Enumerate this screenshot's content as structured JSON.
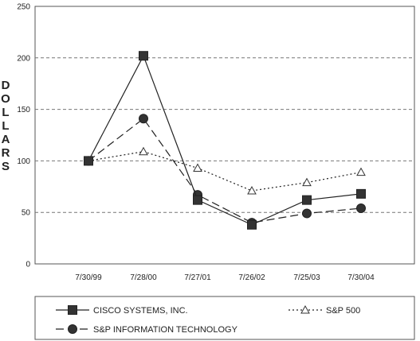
{
  "chart_data": {
    "type": "line",
    "title": "",
    "xlabel": "",
    "ylabel": "DOLLARS",
    "categories": [
      "7/30/99",
      "7/28/00",
      "7/27/01",
      "7/26/02",
      "7/25/03",
      "7/30/04"
    ],
    "ylim": [
      0,
      250
    ],
    "yticks": [
      0,
      50,
      100,
      150,
      200,
      250
    ],
    "grid": "horizontal-dashed",
    "legend_position": "bottom",
    "series": [
      {
        "name": "CISCO SYSTEMS, INC.",
        "values": [
          100,
          202,
          62,
          38,
          62,
          68
        ],
        "marker": "square",
        "line": "solid",
        "color": "#222222"
      },
      {
        "name": "S&P 500",
        "values": [
          100,
          109,
          93,
          71,
          79,
          89
        ],
        "marker": "triangle-open",
        "line": "dotted",
        "color": "#222222"
      },
      {
        "name": "S&P INFORMATION TECHNOLOGY",
        "values": [
          100,
          141,
          67,
          40,
          49,
          54
        ],
        "marker": "circle",
        "line": "dashed",
        "color": "#222222"
      }
    ]
  }
}
